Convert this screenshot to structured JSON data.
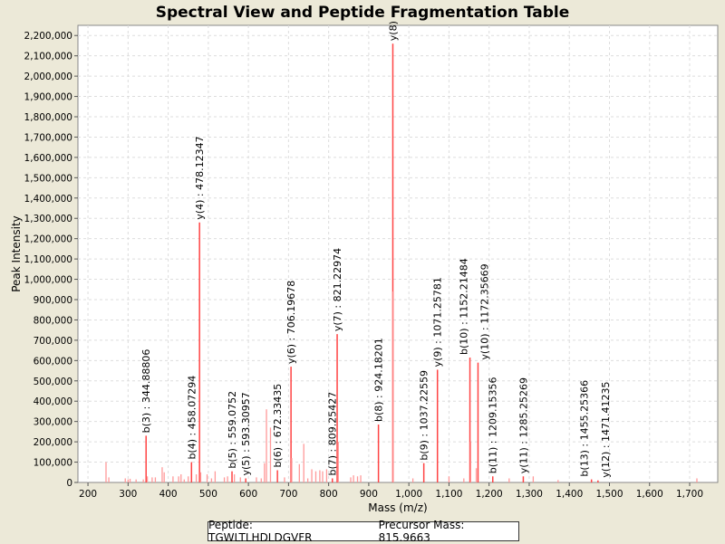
{
  "chart_data": {
    "type": "bar",
    "title": "Spectral View and Peptide Fragmentation Table",
    "xlabel": "Mass (m/z)",
    "ylabel": "Peak Intensity",
    "xlim": [
      175,
      1770
    ],
    "ylim": [
      0,
      2250000
    ],
    "xticks": [
      200,
      300,
      400,
      500,
      600,
      700,
      800,
      900,
      1000,
      1100,
      1200,
      1300,
      1400,
      1500,
      1600,
      1700
    ],
    "xtick_labels": [
      "200",
      "300",
      "400",
      "500",
      "600",
      "700",
      "800",
      "900",
      "1,000",
      "1,100",
      "1,200",
      "1,300",
      "1,400",
      "1,500",
      "1,600",
      "1,700"
    ],
    "ytick_step": 100000,
    "grid": true,
    "bar_color": "#ff5555",
    "peaks": [
      {
        "mz": 245,
        "y": 100000
      },
      {
        "mz": 252,
        "y": 25000
      },
      {
        "mz": 293,
        "y": 20000
      },
      {
        "mz": 300,
        "y": 15000
      },
      {
        "mz": 305,
        "y": 18000
      },
      {
        "mz": 320,
        "y": 15000
      },
      {
        "mz": 338,
        "y": 15000
      },
      {
        "mz": 344.88806,
        "y": 230000,
        "label": "b(3) : 344.88806"
      },
      {
        "mz": 348,
        "y": 30000
      },
      {
        "mz": 360,
        "y": 25000
      },
      {
        "mz": 368,
        "y": 25000
      },
      {
        "mz": 385,
        "y": 75000
      },
      {
        "mz": 390,
        "y": 50000
      },
      {
        "mz": 412,
        "y": 30000
      },
      {
        "mz": 426,
        "y": 30000
      },
      {
        "mz": 432,
        "y": 40000
      },
      {
        "mz": 440,
        "y": 15000
      },
      {
        "mz": 450,
        "y": 30000
      },
      {
        "mz": 458.07294,
        "y": 100000,
        "label": "b(4) : 458.07294"
      },
      {
        "mz": 470,
        "y": 40000
      },
      {
        "mz": 478.12347,
        "y": 1280000,
        "label": "y(4) : 478.12347"
      },
      {
        "mz": 481,
        "y": 50000
      },
      {
        "mz": 497,
        "y": 40000
      },
      {
        "mz": 508,
        "y": 20000
      },
      {
        "mz": 517,
        "y": 55000
      },
      {
        "mz": 540,
        "y": 25000
      },
      {
        "mz": 559.0752,
        "y": 55000,
        "label": "b(5) : 559.0752"
      },
      {
        "mz": 548,
        "y": 30000
      },
      {
        "mz": 565,
        "y": 40000
      },
      {
        "mz": 580,
        "y": 25000
      },
      {
        "mz": 593.30957,
        "y": 20000,
        "label": "y(5) : 593.30957"
      },
      {
        "mz": 620,
        "y": 25000
      },
      {
        "mz": 632,
        "y": 20000
      },
      {
        "mz": 640,
        "y": 95000
      },
      {
        "mz": 645,
        "y": 360000
      },
      {
        "mz": 655,
        "y": 270000
      },
      {
        "mz": 672.33435,
        "y": 60000,
        "label": "b(6) : 672.33435"
      },
      {
        "mz": 690,
        "y": 25000
      },
      {
        "mz": 706.19678,
        "y": 570000,
        "label": "y(6) : 706.19678"
      },
      {
        "mz": 708,
        "y": 120000
      },
      {
        "mz": 727,
        "y": 90000
      },
      {
        "mz": 738,
        "y": 190000
      },
      {
        "mz": 748,
        "y": 20000
      },
      {
        "mz": 758,
        "y": 65000
      },
      {
        "mz": 768,
        "y": 55000
      },
      {
        "mz": 778,
        "y": 60000
      },
      {
        "mz": 785,
        "y": 55000
      },
      {
        "mz": 795,
        "y": 65000
      },
      {
        "mz": 809.25427,
        "y": 20000,
        "label": "b(7) : 809.25427"
      },
      {
        "mz": 821.22974,
        "y": 730000,
        "label": "y(7) : 821.22974"
      },
      {
        "mz": 824,
        "y": 200000
      },
      {
        "mz": 855,
        "y": 25000
      },
      {
        "mz": 862,
        "y": 35000
      },
      {
        "mz": 872,
        "y": 30000
      },
      {
        "mz": 880,
        "y": 35000
      },
      {
        "mz": 924.18201,
        "y": 285000,
        "label": "b(8) : 924.18201"
      },
      {
        "mz": 960,
        "y": 2160000,
        "label": "y(8)"
      },
      {
        "mz": 961,
        "y": 940000
      },
      {
        "mz": 1010,
        "y": 20000
      },
      {
        "mz": 1037.22559,
        "y": 95000,
        "label": "b(9) : 1037.22559"
      },
      {
        "mz": 1071.25781,
        "y": 555000,
        "label": "y(9) : 1071.25781"
      },
      {
        "mz": 1100,
        "y": 30000
      },
      {
        "mz": 1137,
        "y": 20000
      },
      {
        "mz": 1152.21484,
        "y": 615000,
        "label": "b(10) : 1152.21484"
      },
      {
        "mz": 1154,
        "y": 200000
      },
      {
        "mz": 1168,
        "y": 70000
      },
      {
        "mz": 1172.35669,
        "y": 590000,
        "label": "y(10) : 1172.35669"
      },
      {
        "mz": 1209.15356,
        "y": 30000,
        "label": "b(11) : 1209.15356"
      },
      {
        "mz": 1250,
        "y": 20000
      },
      {
        "mz": 1285.25269,
        "y": 30000,
        "label": "y(11) : 1285.25269"
      },
      {
        "mz": 1310,
        "y": 30000
      },
      {
        "mz": 1372,
        "y": 12000
      },
      {
        "mz": 1455.25366,
        "y": 15000,
        "label": "b(13) : 1455.25366"
      },
      {
        "mz": 1471.41235,
        "y": 10000,
        "label": "y(12) : 1471.41235"
      },
      {
        "mz": 1718,
        "y": 20000
      }
    ]
  },
  "legend": {
    "peptide": "Peptide: TGWLTLHDLDGVFR",
    "precursor": "Precursor Mass: 815.9663"
  }
}
